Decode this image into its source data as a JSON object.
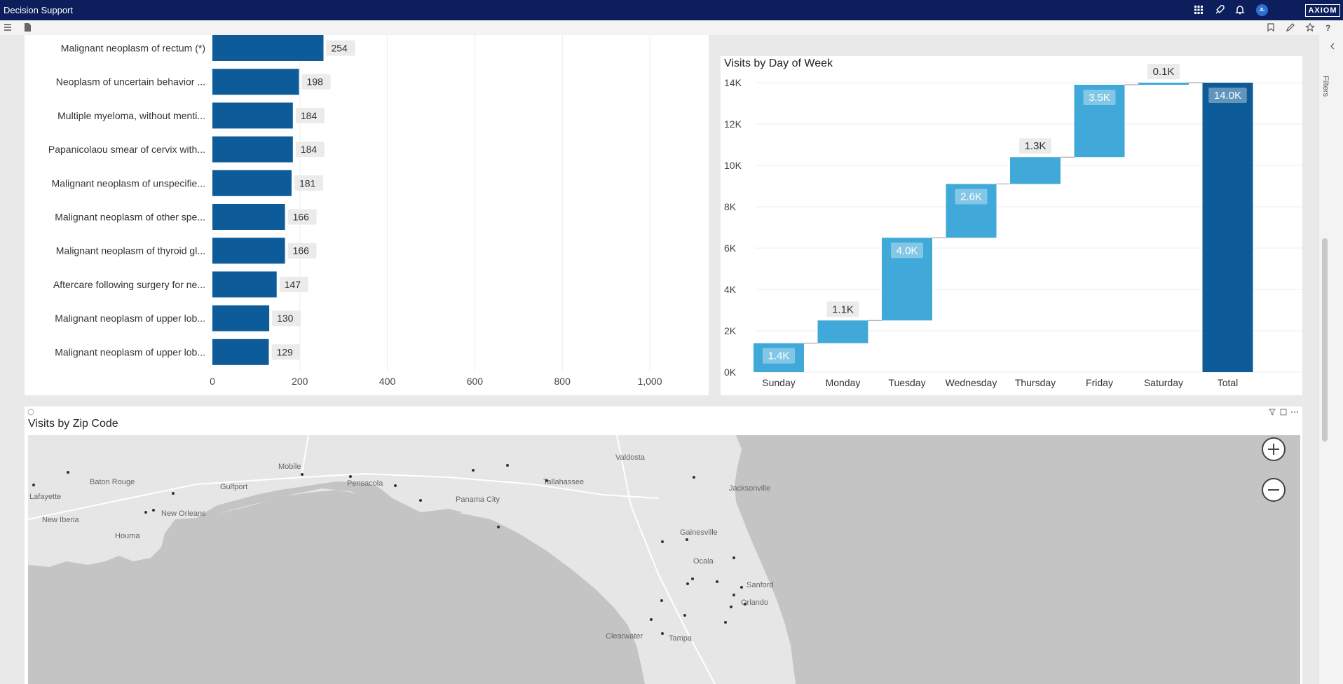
{
  "app": {
    "title": "Decision Support",
    "brand": "AXIOM",
    "user_initials": "JL"
  },
  "colors": {
    "header": "#0c1f5c",
    "bar_dark": "#0d5c99",
    "bar_light": "#41a9d9",
    "map_water": "#c4c4c4",
    "map_land": "#e6e6e6"
  },
  "topbar_icons": [
    "apps-grid-icon",
    "rocket-icon",
    "bell-icon"
  ],
  "toolbar_icons": {
    "left": [
      "hamburger-menu-icon",
      "page-icon"
    ],
    "right": [
      "bookmark-icon",
      "edit-icon",
      "star-icon",
      "help-icon"
    ]
  },
  "bar_chart": {
    "xticks": [
      "0",
      "200",
      "400",
      "600",
      "800",
      "1,000"
    ]
  },
  "waterfall": {
    "title": "Visits by Day of Week",
    "yticks": [
      "14K",
      "12K",
      "10K",
      "8K",
      "6K",
      "4K",
      "2K",
      "0K"
    ]
  },
  "map": {
    "title": "Visits  by Zip Code",
    "header_icons": [
      "info-icon",
      "filter-icon",
      "focus-mode-icon",
      "more-options-icon"
    ],
    "zoom_in_icon": "plus-icon",
    "zoom_out_icon": "minus-icon",
    "places": [
      {
        "name": "Valdosta"
      },
      {
        "name": "Mobile"
      },
      {
        "name": "Baton Rouge"
      },
      {
        "name": "Gulfport"
      },
      {
        "name": "Pensacola"
      },
      {
        "name": "Tallahassee"
      },
      {
        "name": "Jacksonville"
      },
      {
        "name": "Lafayette"
      },
      {
        "name": "Panama City"
      },
      {
        "name": "New Orleans"
      },
      {
        "name": "New Iberia"
      },
      {
        "name": "Houma"
      },
      {
        "name": "Gainesville"
      },
      {
        "name": "Ocala"
      },
      {
        "name": "Sanford"
      },
      {
        "name": "Orlando"
      },
      {
        "name": "Clearwater"
      },
      {
        "name": "Tampa"
      }
    ]
  },
  "rail": {
    "filters_label": "Filters"
  },
  "chart_data": [
    {
      "type": "bar",
      "orientation": "horizontal",
      "categories": [
        "Malignant neoplasm of rectum (*)",
        "Neoplasm of uncertain behavior ...",
        "Multiple myeloma, without menti...",
        "Papanicolaou smear of cervix with...",
        "Malignant neoplasm of unspecifie...",
        "Malignant neoplasm of other spe...",
        "Malignant neoplasm of thyroid gl...",
        "Aftercare following surgery for ne...",
        "Malignant neoplasm of upper lob...",
        "Malignant neoplasm of upper lob..."
      ],
      "values": [
        254,
        198,
        184,
        184,
        181,
        166,
        166,
        147,
        130,
        129
      ],
      "xlim": [
        0,
        1000
      ],
      "grid": true
    },
    {
      "type": "bar",
      "subtype": "waterfall",
      "title": "Visits by Day of Week",
      "categories": [
        "Sunday",
        "Monday",
        "Tuesday",
        "Wednesday",
        "Thursday",
        "Friday",
        "Saturday",
        "Total"
      ],
      "values": [
        1.4,
        1.1,
        4.0,
        2.6,
        1.3,
        3.5,
        0.1,
        14.0
      ],
      "value_labels": [
        "1.4K",
        "1.1K",
        "4.0K",
        "2.6K",
        "1.3K",
        "3.5K",
        "0.1K",
        "14.0K"
      ],
      "unit": "thousand visits",
      "ylim": [
        0,
        14
      ],
      "grid": true
    }
  ]
}
